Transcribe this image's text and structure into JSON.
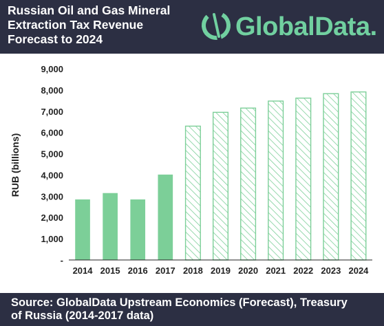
{
  "header": {
    "title_lines": [
      "Russian Oil and Gas Mineral",
      "Extraction Tax Revenue",
      "Forecast to 2024"
    ],
    "logo_text": "GlobalData."
  },
  "footer": {
    "source_lines": [
      "Source: GlobalData Upstream Economics (Forecast), Treasury",
      "of Russia (2014-2017 data)"
    ]
  },
  "colors": {
    "header_bg": "#2c2f43",
    "bar_fill": "#7ccf98",
    "hatch_stroke": "#7ccf98",
    "logo": "#71d0a0"
  },
  "chart_data": {
    "type": "bar",
    "categories": [
      "2014",
      "2015",
      "2016",
      "2017",
      "2018",
      "2019",
      "2020",
      "2021",
      "2022",
      "2023",
      "2024"
    ],
    "values": [
      2850,
      3150,
      2850,
      4020,
      6300,
      6950,
      7150,
      7480,
      7620,
      7830,
      7910
    ],
    "style": [
      "solid",
      "solid",
      "solid",
      "solid",
      "hatched",
      "hatched",
      "hatched",
      "hatched",
      "hatched",
      "hatched",
      "hatched"
    ],
    "ylabel": "RUB (billions)",
    "xlabel": "",
    "ylim": [
      0,
      9000
    ],
    "yticks": [
      0,
      1000,
      2000,
      3000,
      4000,
      5000,
      6000,
      7000,
      8000,
      9000
    ],
    "ytick_labels": [
      "-",
      "1,000",
      "2,000",
      "3,000",
      "4,000",
      "5,000",
      "6,000",
      "7,000",
      "8,000",
      "9,000"
    ],
    "grid": false
  }
}
